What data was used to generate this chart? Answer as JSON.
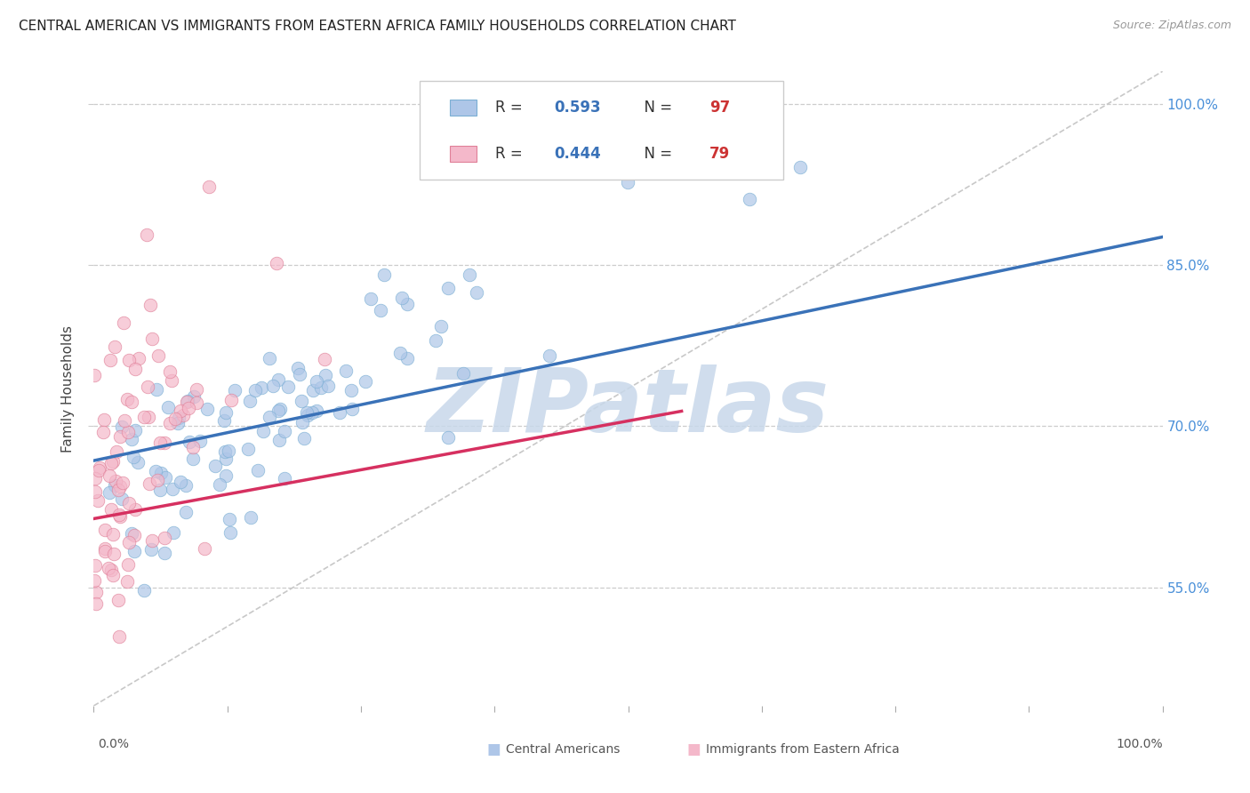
{
  "title": "CENTRAL AMERICAN VS IMMIGRANTS FROM EASTERN AFRICA FAMILY HOUSEHOLDS CORRELATION CHART",
  "source": "Source: ZipAtlas.com",
  "ylabel": "Family Households",
  "xlim": [
    0.0,
    1.0
  ],
  "ylim": [
    0.44,
    1.03
  ],
  "right_yticks": [
    0.55,
    0.7,
    0.85,
    1.0
  ],
  "right_ytick_labels": [
    "55.0%",
    "70.0%",
    "85.0%",
    "100.0%"
  ],
  "blue_R": 0.593,
  "blue_N": 97,
  "pink_R": 0.444,
  "pink_N": 79,
  "blue_scatter_color": "#aec6e8",
  "blue_edge_color": "#7bafd4",
  "pink_scatter_color": "#f4b8ca",
  "pink_edge_color": "#e08098",
  "blue_line_color": "#3a72b8",
  "pink_line_color": "#d63060",
  "trend_blue": [
    0.0,
    0.668,
    1.0,
    0.876
  ],
  "trend_pink": [
    0.0,
    0.614,
    0.55,
    0.714
  ],
  "diag_color": "#c8c8c8",
  "watermark": "ZIPatlas",
  "watermark_color": "#c8d8ea",
  "legend_label_blue": "Central Americans",
  "legend_label_pink": "Immigrants from Eastern Africa",
  "blue_seed": 42,
  "pink_seed": 7
}
